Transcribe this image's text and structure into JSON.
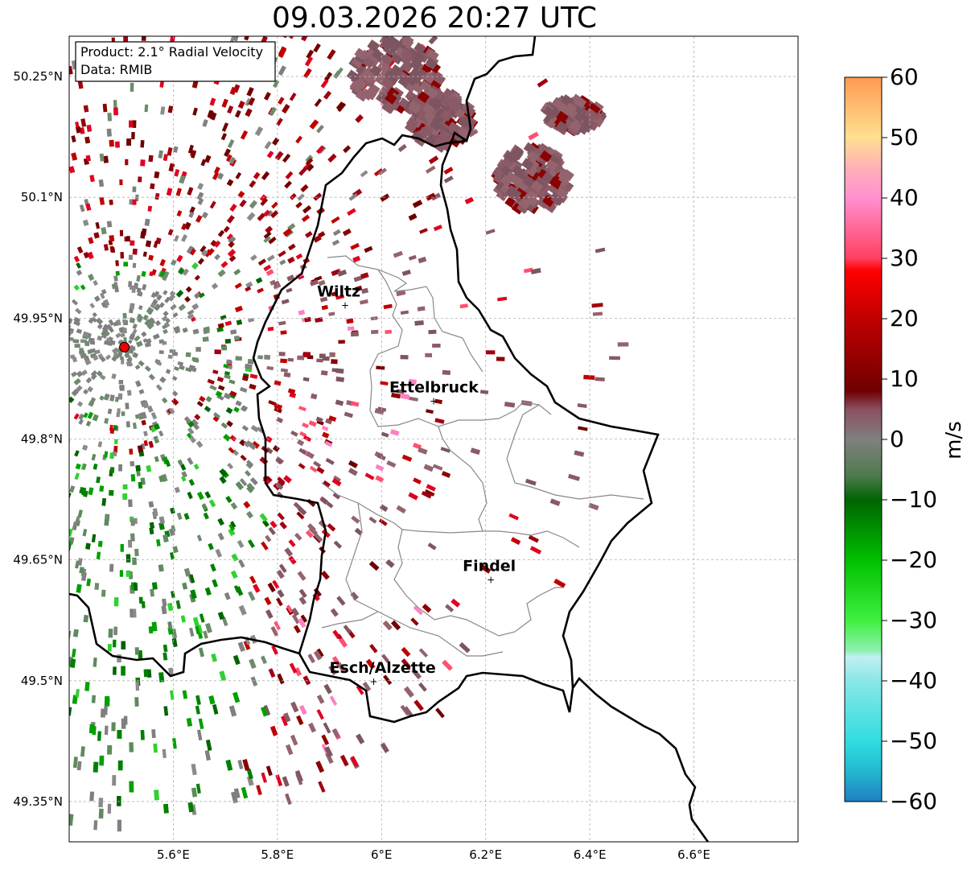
{
  "title": "09.03.2026 20:27 UTC",
  "info_box": {
    "product": "Product: 2.1° Radial Velocity",
    "source": "Data: RMIB"
  },
  "axes": {
    "x_ticks": [
      "5.6°E",
      "5.8°E",
      "6°E",
      "6.2°E",
      "6.4°E",
      "6.6°E"
    ],
    "y_ticks": [
      "50.25°N",
      "50.1°N",
      "49.95°N",
      "49.8°N",
      "49.65°N",
      "49.5°N",
      "49.35°N"
    ],
    "lon_range": [
      5.4,
      6.8
    ],
    "lat_range": [
      49.3,
      50.3
    ],
    "grid": true
  },
  "towns": [
    {
      "name": "Wiltz",
      "lon": 5.93,
      "lat": 49.967
    },
    {
      "name": "Ettelbruck",
      "lon": 6.1,
      "lat": 49.848
    },
    {
      "name": "Findel",
      "lon": 6.21,
      "lat": 49.626
    },
    {
      "name": "Esch/Alzette",
      "lon": 5.985,
      "lat": 49.5
    }
  ],
  "radar_site": {
    "lon": 5.506,
    "lat": 49.914,
    "color": "#ee0000"
  },
  "colorbar": {
    "label": "m/s",
    "min": -60,
    "max": 60,
    "ticks": [
      "60",
      "50",
      "40",
      "30",
      "20",
      "10",
      "0",
      "−10",
      "−20",
      "−30",
      "−40",
      "−50",
      "−60"
    ],
    "stops": [
      {
        "v": -60,
        "c": "#1f7fc0"
      },
      {
        "v": -55,
        "c": "#22b8d0"
      },
      {
        "v": -50,
        "c": "#30dde0"
      },
      {
        "v": -40,
        "c": "#8ae6e8"
      },
      {
        "v": -36,
        "c": "#c0f0f0"
      },
      {
        "v": -35,
        "c": "#8ef0b0"
      },
      {
        "v": -30,
        "c": "#40f040"
      },
      {
        "v": -20,
        "c": "#00c000"
      },
      {
        "v": -10,
        "c": "#006400"
      },
      {
        "v": -6,
        "c": "#4e7a4e"
      },
      {
        "v": 0,
        "c": "#808080"
      },
      {
        "v": 5,
        "c": "#8a5060"
      },
      {
        "v": 8,
        "c": "#700000"
      },
      {
        "v": 20,
        "c": "#c00000"
      },
      {
        "v": 28,
        "c": "#ff0000"
      },
      {
        "v": 30,
        "c": "#ff4060"
      },
      {
        "v": 40,
        "c": "#ff90d0"
      },
      {
        "v": 45,
        "c": "#ffb0b8"
      },
      {
        "v": 50,
        "c": "#ffe090"
      },
      {
        "v": 60,
        "c": "#ff9a50"
      }
    ]
  }
}
